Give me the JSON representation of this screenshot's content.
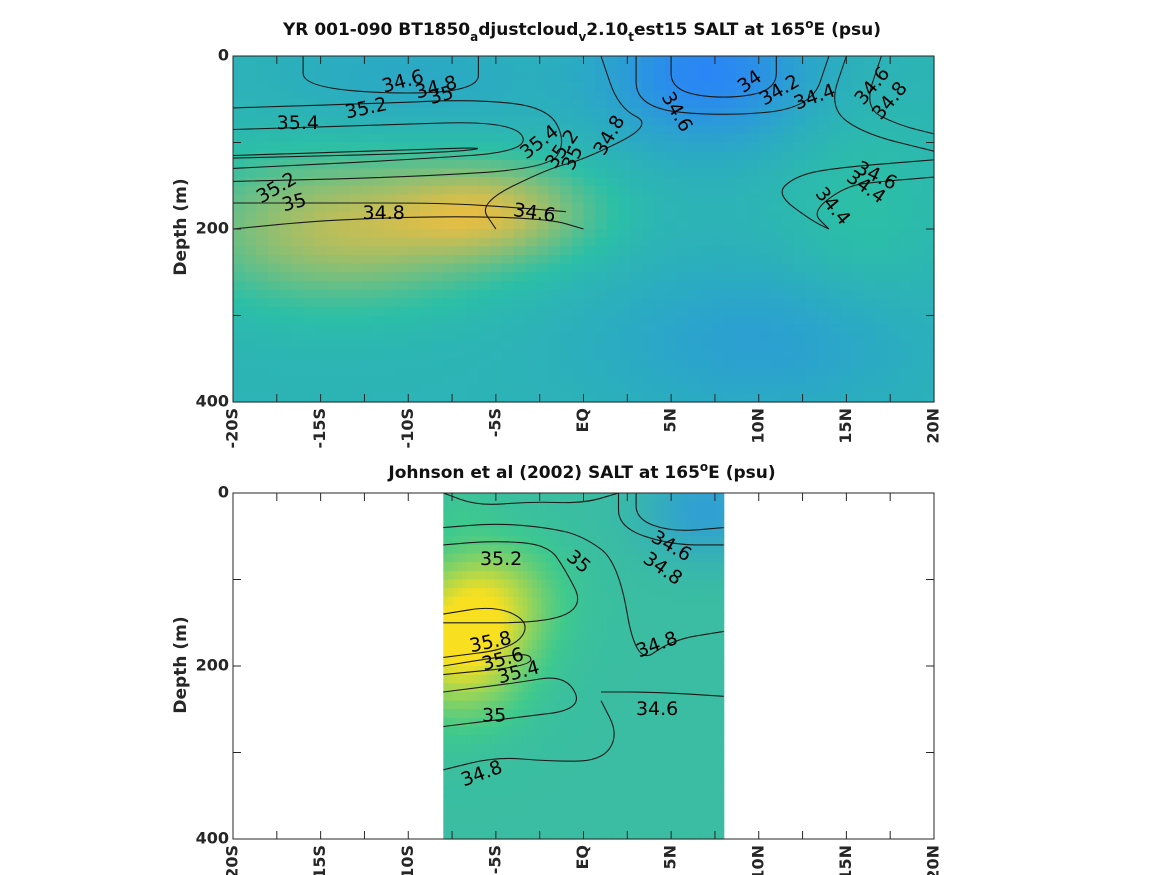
{
  "chart_data": [
    {
      "type": "contour",
      "title_parts": [
        "YR 001-090 BT1850",
        "a",
        "djustcloud",
        "v",
        "2.10",
        "t",
        "est15 SALT at 165",
        "o",
        "E (psu)"
      ],
      "xlabel": "",
      "ylabel": "Depth (m)",
      "xlim": [
        -20,
        20
      ],
      "ylim": [
        0,
        400
      ],
      "y_reversed": true,
      "x_ticks": [
        -20,
        -15,
        -10,
        -5,
        0,
        5,
        10,
        15,
        20
      ],
      "x_tick_labels": [
        "-20S",
        "-15S",
        "-10S",
        "-5S",
        "EQ",
        "5N",
        "10N",
        "15N",
        "20N"
      ],
      "y_ticks": [
        0,
        200,
        400
      ],
      "y_tick_labels": [
        "0",
        "200",
        "400"
      ],
      "data_extent": [
        -20,
        20
      ],
      "colors": {
        "high": "#f8be3a",
        "mid": "#2cbfa6",
        "low": "#2a86f5"
      },
      "fields": [
        {
          "x": -14,
          "y": 200,
          "v": 35.55,
          "sx": 6,
          "sy": 60
        },
        {
          "x": -5,
          "y": 180,
          "v": 35.5,
          "sx": 4,
          "sy": 40
        },
        {
          "x": -10,
          "y": 30,
          "v": 34.5,
          "sx": 5,
          "sy": 45
        },
        {
          "x": 7,
          "y": 20,
          "v": 33.9,
          "sx": 4,
          "sy": 55
        },
        {
          "x": 16,
          "y": 180,
          "v": 34.9,
          "sx": 3.5,
          "sy": 80
        },
        {
          "x": 10,
          "y": 330,
          "v": 34.35,
          "sx": 6,
          "sy": 60
        }
      ],
      "contour_labels": [
        {
          "text": "34.6",
          "x": -10.3,
          "y": 30,
          "angle": -15
        },
        {
          "text": "34.8",
          "x": -8.4,
          "y": 37,
          "angle": -15
        },
        {
          "text": "35",
          "x": -8.1,
          "y": 46,
          "angle": -15
        },
        {
          "text": "35.2",
          "x": -12.4,
          "y": 61,
          "angle": -12
        },
        {
          "text": "35.4",
          "x": -16.3,
          "y": 78,
          "angle": 0
        },
        {
          "text": "35.4",
          "x": -2.5,
          "y": 100,
          "angle": -38
        },
        {
          "text": "35.2",
          "x": -1.2,
          "y": 108,
          "angle": -55
        },
        {
          "text": "35",
          "x": -0.6,
          "y": 118,
          "angle": -65
        },
        {
          "text": "34.8",
          "x": 1.5,
          "y": 92,
          "angle": -60
        },
        {
          "text": "34.6",
          "x": 5.3,
          "y": 65,
          "angle": 60
        },
        {
          "text": "34",
          "x": 9.5,
          "y": 30,
          "angle": -35
        },
        {
          "text": "34.2",
          "x": 11.2,
          "y": 40,
          "angle": -30
        },
        {
          "text": "34.4",
          "x": 13.2,
          "y": 48,
          "angle": -20
        },
        {
          "text": "34.6",
          "x": 16.5,
          "y": 35,
          "angle": -50
        },
        {
          "text": "34.8",
          "x": 17.5,
          "y": 52,
          "angle": -50
        },
        {
          "text": "34.6",
          "x": 16.7,
          "y": 139,
          "angle": 25
        },
        {
          "text": "34.4",
          "x": 16.1,
          "y": 152,
          "angle": 35
        },
        {
          "text": "34.4",
          "x": 14.2,
          "y": 174,
          "angle": 50
        },
        {
          "text": "35.2",
          "x": -17.5,
          "y": 153,
          "angle": -30
        },
        {
          "text": "35",
          "x": -16.5,
          "y": 170,
          "angle": -15
        },
        {
          "text": "34.8",
          "x": -11.4,
          "y": 182,
          "angle": 0
        },
        {
          "text": "34.6",
          "x": -2.8,
          "y": 182,
          "angle": 8
        }
      ]
    },
    {
      "type": "contour",
      "title_parts": [
        "Johnson et al (2002) SALT at 165",
        "o",
        "E (psu)"
      ],
      "xlabel": "",
      "ylabel": "Depth (m)",
      "xlim": [
        -20,
        20
      ],
      "ylim": [
        0,
        400
      ],
      "y_reversed": true,
      "x_ticks": [
        -20,
        -15,
        -10,
        -5,
        0,
        5,
        10,
        15,
        20
      ],
      "x_tick_labels": [
        "-20S",
        "-15S",
        "-10S",
        "-5S",
        "EQ",
        "5N",
        "10N",
        "15N",
        "20N"
      ],
      "y_ticks": [
        0,
        200,
        400
      ],
      "y_tick_labels": [
        "0",
        "200",
        "400"
      ],
      "data_extent": [
        -8,
        8
      ],
      "colors": {
        "high": "#f8e020",
        "mid": "#3ec98e",
        "low": "#2a8ef0"
      },
      "fields": [
        {
          "x": -7,
          "y": 175,
          "v": 35.9,
          "sx": 2.5,
          "sy": 55
        },
        {
          "x": -5,
          "y": 120,
          "v": 35.3,
          "sx": 2.5,
          "sy": 45
        },
        {
          "x": 7,
          "y": 20,
          "v": 34.2,
          "sx": 2.5,
          "sy": 40
        },
        {
          "x": 5,
          "y": 240,
          "v": 34.7,
          "sx": 3,
          "sy": 90
        },
        {
          "x": -7,
          "y": 20,
          "v": 34.8,
          "sx": 1.5,
          "sy": 20
        }
      ],
      "contour_labels": [
        {
          "text": "35.2",
          "x": -4.7,
          "y": 77,
          "angle": 0
        },
        {
          "text": "35",
          "x": -0.3,
          "y": 80,
          "angle": 40
        },
        {
          "text": "34.6",
          "x": 5,
          "y": 62,
          "angle": 30
        },
        {
          "text": "34.8",
          "x": 4.5,
          "y": 88,
          "angle": 35
        },
        {
          "text": "35.8",
          "x": -5.3,
          "y": 173,
          "angle": -12
        },
        {
          "text": "35.6",
          "x": -4.6,
          "y": 193,
          "angle": -15
        },
        {
          "text": "35.4",
          "x": -3.7,
          "y": 208,
          "angle": -15
        },
        {
          "text": "34.8",
          "x": 4.2,
          "y": 176,
          "angle": -20
        },
        {
          "text": "35",
          "x": -5.1,
          "y": 258,
          "angle": 0
        },
        {
          "text": "34.6",
          "x": 4.2,
          "y": 250,
          "angle": 0
        },
        {
          "text": "34.8",
          "x": -5.8,
          "y": 325,
          "angle": -20
        }
      ]
    }
  ]
}
